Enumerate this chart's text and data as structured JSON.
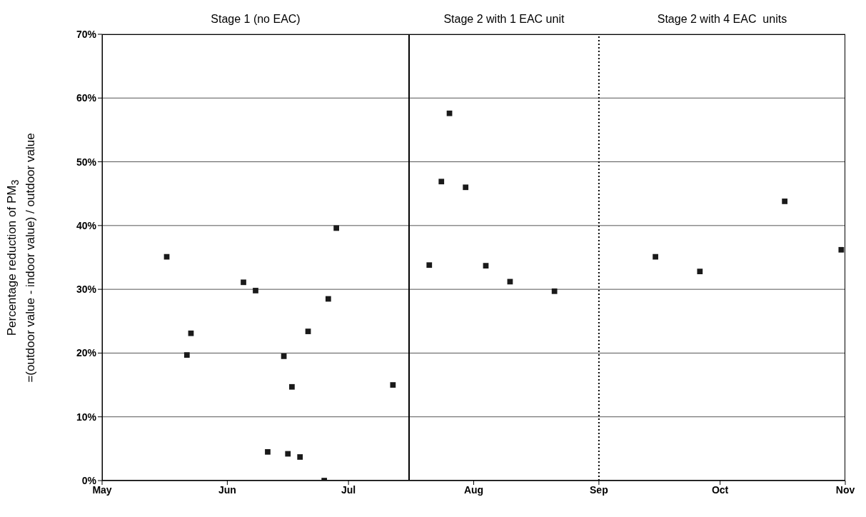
{
  "chart_data": {
    "type": "scatter",
    "ylabel": "Percentage reduction of PM$_{3}$\n=(outdoor value - indoor value) / outdoor value",
    "x": [
      "--05-17",
      "--05-22",
      "--05-23",
      "--06-05",
      "--06-08",
      "--06-11",
      "--06-15",
      "--06-16",
      "--06-17",
      "--06-19",
      "--06-21",
      "--06-25",
      "--06-26",
      "--06-28",
      "--07-12",
      "--07-21",
      "--07-24",
      "--07-26",
      "--07-30",
      "--08-04",
      "--08-10",
      "--08-21",
      "--09-15",
      "--09-26",
      "--10-17",
      "--10-31"
    ],
    "values": [
      35.1,
      19.7,
      23.1,
      31.1,
      29.8,
      4.5,
      19.5,
      4.2,
      14.7,
      3.7,
      23.4,
      0,
      28.5,
      39.6,
      15.0,
      33.8,
      46.9,
      57.6,
      46.0,
      33.7,
      31.2,
      29.7,
      35.1,
      32.8,
      43.8,
      36.2
    ],
    "color": "#1a1a1a",
    "marker": "square",
    "xlim": [
      "--05-01",
      "--11-01"
    ],
    "xticks": [
      {
        "value": "--05-01",
        "label": "May"
      },
      {
        "value": "--06-01",
        "label": "Jun"
      },
      {
        "value": "--07-01",
        "label": "Jul"
      },
      {
        "value": "--08-01",
        "label": "Aug"
      },
      {
        "value": "--09-01",
        "label": "Sep"
      },
      {
        "value": "--10-01",
        "label": "Oct"
      },
      {
        "value": "--11-01",
        "label": "Nov"
      }
    ],
    "ylim": [
      0,
      70
    ],
    "yticks": [
      {
        "value": 0,
        "label": "0%"
      },
      {
        "value": 10,
        "label": "10%"
      },
      {
        "value": 20,
        "label": "20%"
      },
      {
        "value": 30,
        "label": "30%"
      },
      {
        "value": 40,
        "label": "40%"
      },
      {
        "value": 50,
        "label": "50%"
      },
      {
        "value": 60,
        "label": "60%"
      },
      {
        "value": 70,
        "label": "70%"
      }
    ],
    "grid": "y",
    "ref_lines": [
      {
        "axis": "x",
        "value": "--07-16",
        "color": "#000000",
        "line_style": "solid"
      },
      {
        "axis": "x",
        "value": "--09-01",
        "color": "#000000",
        "line_style": "dotted"
      }
    ],
    "annotations": [
      "Stage 1 (no EAC)",
      "Stage 2 with 1 EAC unit",
      "Stage 2 with 4 EAC  units"
    ]
  }
}
